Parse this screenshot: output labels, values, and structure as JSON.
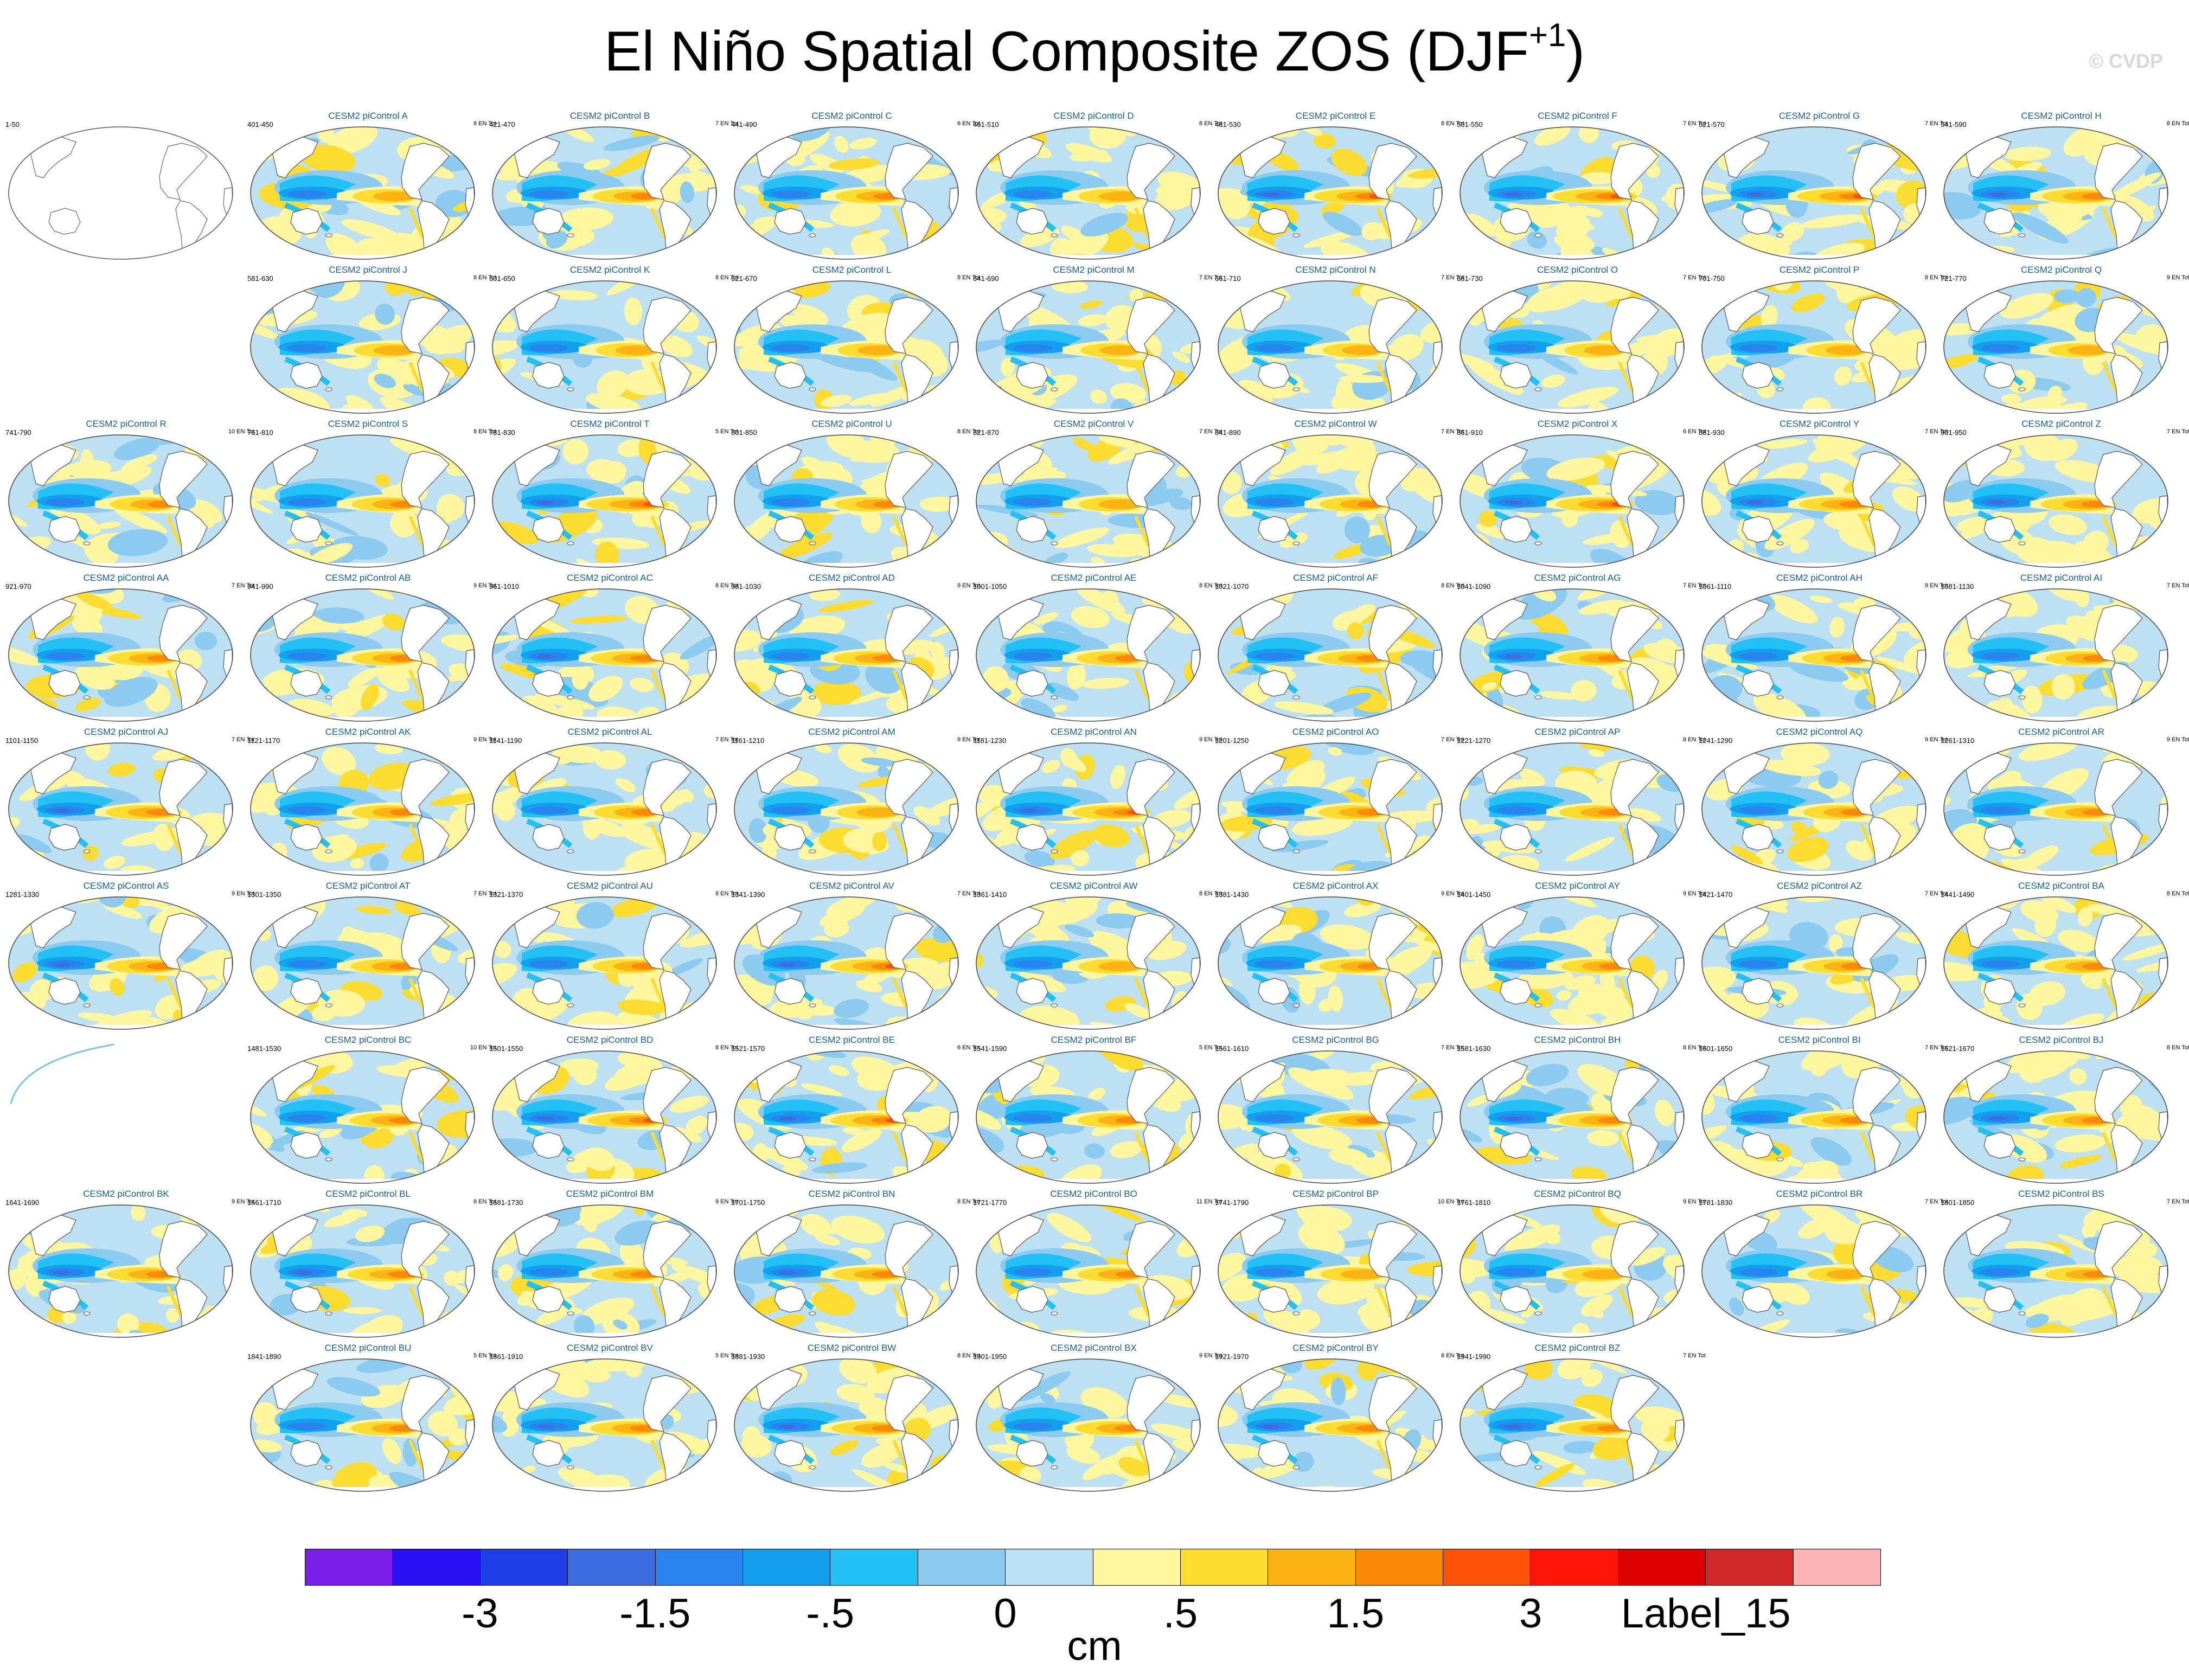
{
  "title": {
    "main": "El Niño Spatial Composite ZOS (DJF",
    "sup": "+1",
    "close": ")"
  },
  "watermark": "© CVDP",
  "model_prefix": "CESM2 piControl",
  "panels": [
    {
      "row": 0,
      "col": 0,
      "name": "",
      "years": "1-50",
      "count": "",
      "empty": true
    },
    {
      "row": 0,
      "col": 1,
      "name": "CESM2 piControl A",
      "years": "401-450",
      "count": "8 EN Tot",
      "intensity": 0.55
    },
    {
      "row": 0,
      "col": 2,
      "name": "CESM2 piControl B",
      "years": "421-470",
      "count": "7 EN Tot",
      "intensity": 0.65
    },
    {
      "row": 0,
      "col": 3,
      "name": "CESM2 piControl C",
      "years": "441-490",
      "count": "6 EN Tot",
      "intensity": 0.6
    },
    {
      "row": 0,
      "col": 4,
      "name": "CESM2 piControl D",
      "years": "461-510",
      "count": "8 EN Tot",
      "intensity": 0.55
    },
    {
      "row": 0,
      "col": 5,
      "name": "CESM2 piControl E",
      "years": "481-530",
      "count": "8 EN Tot",
      "intensity": 0.85
    },
    {
      "row": 0,
      "col": 6,
      "name": "CESM2 piControl F",
      "years": "501-550",
      "count": "7 EN Tot",
      "intensity": 1.0
    },
    {
      "row": 0,
      "col": 7,
      "name": "CESM2 piControl G",
      "years": "521-570",
      "count": "7 EN Tot",
      "intensity": 0.9
    },
    {
      "row": 0,
      "col": 8,
      "name": "CESM2 piControl H",
      "years": "541-590",
      "count": "8 EN Tot",
      "intensity": 0.75
    },
    {
      "row": 1,
      "col": 1,
      "name": "CESM2 piControl J",
      "years": "581-630",
      "count": "8 EN Tot",
      "intensity": 0.5
    },
    {
      "row": 1,
      "col": 2,
      "name": "CESM2 piControl K",
      "years": "601-650",
      "count": "8 EN Tot",
      "intensity": 0.5
    },
    {
      "row": 1,
      "col": 3,
      "name": "CESM2 piControl L",
      "years": "621-670",
      "count": "8 EN Tot",
      "intensity": 0.5
    },
    {
      "row": 1,
      "col": 4,
      "name": "CESM2 piControl M",
      "years": "641-690",
      "count": "7 EN Tot",
      "intensity": 0.45
    },
    {
      "row": 1,
      "col": 5,
      "name": "CESM2 piControl N",
      "years": "661-710",
      "count": "7 EN Tot",
      "intensity": 0.45
    },
    {
      "row": 1,
      "col": 6,
      "name": "CESM2 piControl O",
      "years": "681-730",
      "count": "7 EN Tot",
      "intensity": 0.45
    },
    {
      "row": 1,
      "col": 7,
      "name": "CESM2 piControl P",
      "years": "701-750",
      "count": "8 EN Tot",
      "intensity": 0.45
    },
    {
      "row": 1,
      "col": 8,
      "name": "CESM2 piControl Q",
      "years": "721-770",
      "count": "9 EN Tot",
      "intensity": 0.45
    },
    {
      "row": 2,
      "col": 0,
      "name": "CESM2 piControl R",
      "years": "741-790",
      "count": "10 EN Tot",
      "intensity": 0.6
    },
    {
      "row": 2,
      "col": 1,
      "name": "CESM2 piControl S",
      "years": "761-810",
      "count": "8 EN Tot",
      "intensity": 0.6
    },
    {
      "row": 2,
      "col": 2,
      "name": "CESM2 piControl T",
      "years": "781-830",
      "count": "5 EN Tot",
      "intensity": 0.95
    },
    {
      "row": 2,
      "col": 3,
      "name": "CESM2 piControl U",
      "years": "801-850",
      "count": "8 EN Tot",
      "intensity": 0.65
    },
    {
      "row": 2,
      "col": 4,
      "name": "CESM2 piControl V",
      "years": "821-870",
      "count": "7 EN Tot",
      "intensity": 0.55
    },
    {
      "row": 2,
      "col": 5,
      "name": "CESM2 piControl W",
      "years": "841-890",
      "count": "7 EN Tot",
      "intensity": 0.6
    },
    {
      "row": 2,
      "col": 6,
      "name": "CESM2 piControl X",
      "years": "861-910",
      "count": "6 EN Tot",
      "intensity": 0.85
    },
    {
      "row": 2,
      "col": 7,
      "name": "CESM2 piControl Y",
      "years": "881-930",
      "count": "7 EN Tot",
      "intensity": 0.8
    },
    {
      "row": 2,
      "col": 8,
      "name": "CESM2 piControl Z",
      "years": "901-950",
      "count": "7 EN Tot",
      "intensity": 0.8
    },
    {
      "row": 3,
      "col": 0,
      "name": "CESM2 piControl AA",
      "years": "921-970",
      "count": "7 EN Tot",
      "intensity": 0.7
    },
    {
      "row": 3,
      "col": 1,
      "name": "CESM2 piControl AB",
      "years": "941-990",
      "count": "9 EN Tot",
      "intensity": 0.6
    },
    {
      "row": 3,
      "col": 2,
      "name": "CESM2 piControl AC",
      "years": "961-1010",
      "count": "8 EN Tot",
      "intensity": 0.75
    },
    {
      "row": 3,
      "col": 3,
      "name": "CESM2 piControl AD",
      "years": "981-1030",
      "count": "9 EN Tot",
      "intensity": 0.7
    },
    {
      "row": 3,
      "col": 4,
      "name": "CESM2 piControl AE",
      "years": "1001-1050",
      "count": "8 EN Tot",
      "intensity": 0.65
    },
    {
      "row": 3,
      "col": 5,
      "name": "CESM2 piControl AF",
      "years": "1021-1070",
      "count": "8 EN Tot",
      "intensity": 0.7
    },
    {
      "row": 3,
      "col": 6,
      "name": "CESM2 piControl AG",
      "years": "1041-1090",
      "count": "7 EN Tot",
      "intensity": 0.75
    },
    {
      "row": 3,
      "col": 7,
      "name": "CESM2 piControl AH",
      "years": "1061-1110",
      "count": "9 EN Tot",
      "intensity": 0.65
    },
    {
      "row": 3,
      "col": 8,
      "name": "CESM2 piControl AI",
      "years": "1081-1130",
      "count": "7 EN Tot",
      "intensity": 0.6
    },
    {
      "row": 4,
      "col": 0,
      "name": "CESM2 piControl AJ",
      "years": "1101-1150",
      "count": "7 EN Tot",
      "intensity": 0.8
    },
    {
      "row": 4,
      "col": 1,
      "name": "CESM2 piControl AK",
      "years": "1121-1170",
      "count": "9 EN Tot",
      "intensity": 0.6
    },
    {
      "row": 4,
      "col": 2,
      "name": "CESM2 piControl AL",
      "years": "1141-1190",
      "count": "7 EN Tot",
      "intensity": 0.6
    },
    {
      "row": 4,
      "col": 3,
      "name": "CESM2 piControl AM",
      "years": "1161-1210",
      "count": "9 EN Tot",
      "intensity": 0.55
    },
    {
      "row": 4,
      "col": 4,
      "name": "CESM2 piControl AN",
      "years": "1181-1230",
      "count": "9 EN Tot",
      "intensity": 0.85
    },
    {
      "row": 4,
      "col": 5,
      "name": "CESM2 piControl AO",
      "years": "1201-1250",
      "count": "7 EN Tot",
      "intensity": 0.65
    },
    {
      "row": 4,
      "col": 6,
      "name": "CESM2 piControl AP",
      "years": "1221-1270",
      "count": "8 EN Tot",
      "intensity": 0.7
    },
    {
      "row": 4,
      "col": 7,
      "name": "CESM2 piControl AQ",
      "years": "1241-1290",
      "count": "9 EN Tot",
      "intensity": 0.6
    },
    {
      "row": 4,
      "col": 8,
      "name": "CESM2 piControl AR",
      "years": "1261-1310",
      "count": "9 EN Tot",
      "intensity": 0.65
    },
    {
      "row": 5,
      "col": 0,
      "name": "CESM2 piControl AS",
      "years": "1281-1330",
      "count": "9 EN Tot",
      "intensity": 0.75
    },
    {
      "row": 5,
      "col": 1,
      "name": "CESM2 piControl AT",
      "years": "1301-1350",
      "count": "7 EN Tot",
      "intensity": 0.65
    },
    {
      "row": 5,
      "col": 2,
      "name": "CESM2 piControl AU",
      "years": "1321-1370",
      "count": "8 EN Tot",
      "intensity": 0.65
    },
    {
      "row": 5,
      "col": 3,
      "name": "CESM2 piControl AV",
      "years": "1341-1390",
      "count": "7 EN Tot",
      "intensity": 0.85
    },
    {
      "row": 5,
      "col": 4,
      "name": "CESM2 piControl AW",
      "years": "1361-1410",
      "count": "8 EN Tot",
      "intensity": 0.55
    },
    {
      "row": 5,
      "col": 5,
      "name": "CESM2 piControl AX",
      "years": "1381-1430",
      "count": "9 EN Tot",
      "intensity": 0.6
    },
    {
      "row": 5,
      "col": 6,
      "name": "CESM2 piControl AY",
      "years": "1401-1450",
      "count": "9 EN Tot",
      "intensity": 0.6
    },
    {
      "row": 5,
      "col": 7,
      "name": "CESM2 piControl AZ",
      "years": "1421-1470",
      "count": "7 EN Tot",
      "intensity": 0.6
    },
    {
      "row": 5,
      "col": 8,
      "name": "CESM2 piControl BA",
      "years": "1441-1490",
      "count": "8 EN Tot",
      "intensity": 0.65
    },
    {
      "row": 6,
      "col": 1,
      "name": "CESM2 piControl BC",
      "years": "1481-1530",
      "count": "10 EN Tot",
      "intensity": 0.7
    },
    {
      "row": 6,
      "col": 2,
      "name": "CESM2 piControl BD",
      "years": "1501-1550",
      "count": "8 EN Tot",
      "intensity": 0.9
    },
    {
      "row": 6,
      "col": 3,
      "name": "CESM2 piControl BE",
      "years": "1521-1570",
      "count": "6 EN Tot",
      "intensity": 0.85
    },
    {
      "row": 6,
      "col": 4,
      "name": "CESM2 piControl BF",
      "years": "1541-1590",
      "count": "5 EN Tot",
      "intensity": 0.6
    },
    {
      "row": 6,
      "col": 5,
      "name": "CESM2 piControl BG",
      "years": "1561-1610",
      "count": "7 EN Tot",
      "intensity": 0.7
    },
    {
      "row": 6,
      "col": 6,
      "name": "CESM2 piControl BH",
      "years": "1581-1630",
      "count": "8 EN Tot",
      "intensity": 0.75
    },
    {
      "row": 6,
      "col": 7,
      "name": "CESM2 piControl BI",
      "years": "1601-1650",
      "count": "7 EN Tot",
      "intensity": 0.7
    },
    {
      "row": 6,
      "col": 8,
      "name": "CESM2 piControl BJ",
      "years": "1621-1670",
      "count": "8 EN Tot",
      "intensity": 0.75
    },
    {
      "row": 7,
      "col": 0,
      "name": "CESM2 piControl BK",
      "years": "1641-1690",
      "count": "9 EN Tot",
      "intensity": 0.75
    },
    {
      "row": 7,
      "col": 1,
      "name": "CESM2 piControl BL",
      "years": "1661-1710",
      "count": "8 EN Tot",
      "intensity": 0.8
    },
    {
      "row": 7,
      "col": 2,
      "name": "CESM2 piControl BM",
      "years": "1681-1730",
      "count": "9 EN Tot",
      "intensity": 0.7
    },
    {
      "row": 7,
      "col": 3,
      "name": "CESM2 piControl BN",
      "years": "1701-1750",
      "count": "8 EN Tot",
      "intensity": 0.75
    },
    {
      "row": 7,
      "col": 4,
      "name": "CESM2 piControl BO",
      "years": "1721-1770",
      "count": "11 EN Tot",
      "intensity": 0.6
    },
    {
      "row": 7,
      "col": 5,
      "name": "CESM2 piControl BP",
      "years": "1741-1790",
      "count": "10 EN Tot",
      "intensity": 0.55
    },
    {
      "row": 7,
      "col": 6,
      "name": "CESM2 piControl BQ",
      "years": "1761-1810",
      "count": "9 EN Tot",
      "intensity": 0.55
    },
    {
      "row": 7,
      "col": 7,
      "name": "CESM2 piControl BR",
      "years": "1781-1830",
      "count": "7 EN Tot",
      "intensity": 0.4
    },
    {
      "row": 7,
      "col": 8,
      "name": "CESM2 piControl BS",
      "years": "1801-1850",
      "count": "7 EN Tot",
      "intensity": 0.6
    },
    {
      "row": 8,
      "col": 1,
      "name": "CESM2 piControl BU",
      "years": "1841-1890",
      "count": "5 EN Tot",
      "intensity": 0.65
    },
    {
      "row": 8,
      "col": 2,
      "name": "CESM2 piControl BV",
      "years": "1861-1910",
      "count": "5 EN Tot",
      "intensity": 0.75
    },
    {
      "row": 8,
      "col": 3,
      "name": "CESM2 piControl BW",
      "years": "1881-1930",
      "count": "8 EN Tot",
      "intensity": 0.8
    },
    {
      "row": 8,
      "col": 4,
      "name": "CESM2 piControl BX",
      "years": "1901-1950",
      "count": "9 EN Tot",
      "intensity": 0.7
    },
    {
      "row": 8,
      "col": 5,
      "name": "CESM2 piControl BY",
      "years": "1921-1970",
      "count": "8 EN Tot",
      "intensity": 0.8
    },
    {
      "row": 8,
      "col": 6,
      "name": "CESM2 piControl BZ",
      "years": "1941-1990",
      "count": "7 EN Tot",
      "intensity": 0.75
    }
  ],
  "colorbar": {
    "colors": [
      "#7b1fe8",
      "#2a10f5",
      "#1e3ee8",
      "#3d6ee0",
      "#2a82ee",
      "#12a0ee",
      "#22c0f4",
      "#8ccaf0",
      "#bde0f2",
      "#fff6a0",
      "#fcdc30",
      "#fcb414",
      "#fc8a0a",
      "#fc5208",
      "#fc1408",
      "#de0000",
      "#d02828",
      "#fcb4b4"
    ],
    "labels": [
      "-3",
      "-1.5",
      "-.5",
      "0",
      ".5",
      "1.5",
      "3",
      "Label_15"
    ],
    "units": "cm"
  }
}
